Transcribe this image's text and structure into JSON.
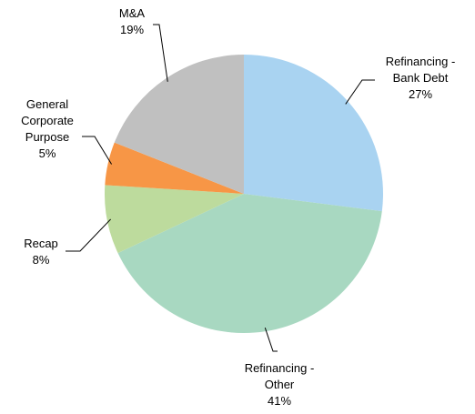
{
  "chart_data": {
    "type": "pie",
    "categories": [
      "Refinancing - Bank Debt",
      "Refinancing - Other",
      "Recap",
      "General Corporate Purpose",
      "M&A"
    ],
    "values": [
      27,
      41,
      8,
      5,
      19
    ],
    "value_labels": [
      "27%",
      "41%",
      "8%",
      "5%",
      "19%"
    ],
    "colors": [
      "#a9d3f1",
      "#a8d8c1",
      "#bddb9d",
      "#f79646",
      "#c0c0c0"
    ]
  }
}
